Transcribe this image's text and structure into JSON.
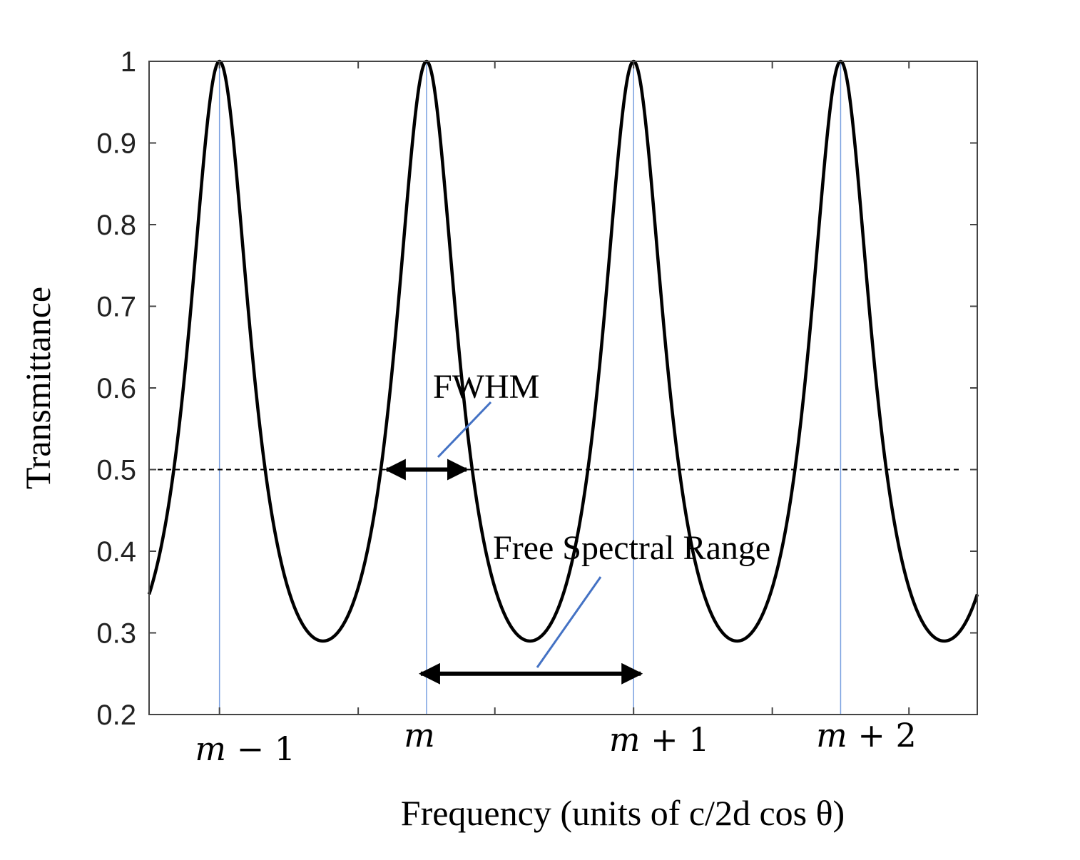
{
  "chart_data": {
    "type": "line",
    "title": "",
    "xlabel": "Frequency (units of c/2d cos θ)",
    "ylabel": "Transmittance",
    "xlim": [
      -1.34,
      2.66
    ],
    "ylim": [
      0.2,
      1
    ],
    "yticks": [
      "0.2",
      "0.3",
      "0.4",
      "0.5",
      "0.6",
      "0.7",
      "0.8",
      "0.9",
      "1"
    ],
    "xticks": [
      -1.0,
      -0.33,
      0.33,
      1.0,
      1.67,
      2.33
    ],
    "grid": false,
    "legend": "none",
    "series": [
      {
        "curve": "airy",
        "peak_orders": [
          -1,
          0,
          1,
          2
        ],
        "max": 1.0,
        "min": 0.29,
        "color": "#000000"
      }
    ],
    "half_max_line": {
      "y": 0.5,
      "style": "dashed",
      "color": "#000000"
    },
    "order_lines": {
      "x": [
        -1,
        0,
        1,
        2
      ],
      "color": "#7aa0e0"
    },
    "order_labels": [
      {
        "x": -1,
        "var": "m",
        "rest": " − 1"
      },
      {
        "x": 0,
        "var": "m",
        "rest": ""
      },
      {
        "x": 1,
        "var": "m",
        "rest": " + 1"
      },
      {
        "x": 2,
        "var": "m",
        "rest": " + 2"
      }
    ],
    "annotations": [
      {
        "text": "FWHM",
        "arrow": {
          "x": [
            -0.2,
            0.2
          ],
          "y": 0.5
        },
        "pointer_color": "#4472c4"
      },
      {
        "text": "Free Spectral Range",
        "arrow": {
          "x": [
            0,
            1
          ],
          "y": 0.25
        },
        "pointer_color": "#4472c4"
      }
    ]
  }
}
